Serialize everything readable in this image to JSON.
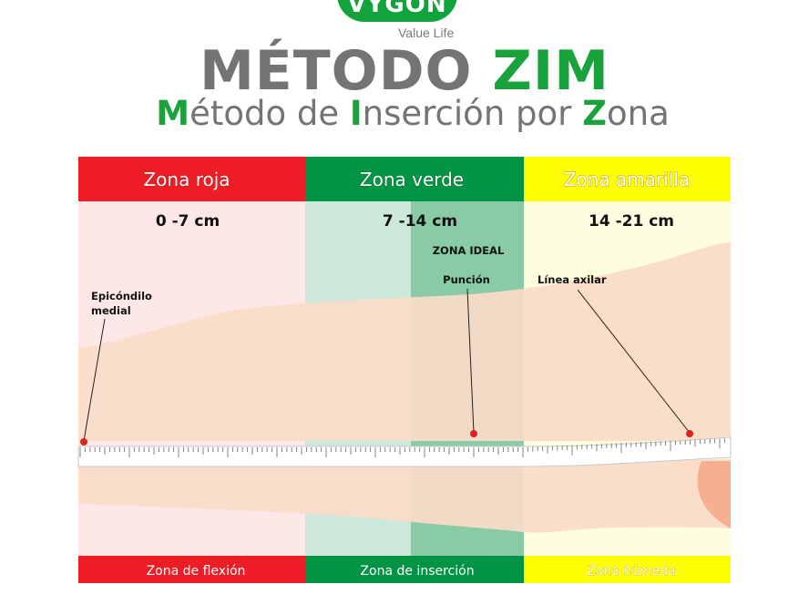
{
  "brand": {
    "logo": "VYGON",
    "tagline": "Value Life"
  },
  "title": {
    "part1": "MÉTODO",
    "part2": "ZIM"
  },
  "subtitle": {
    "m_cap": "M",
    "m_rest": "étodo de ",
    "i_cap": "I",
    "i_rest": "nserción por ",
    "z_cap": "Z",
    "z_rest": "ona"
  },
  "zones": [
    {
      "name": "Zona roja",
      "range": "0 -7 cm",
      "footer": "Zona de flexión",
      "header_color": "#ee1c25",
      "bg_color": "#fde7e7",
      "footer_color": "#ee1c25"
    },
    {
      "name": "Zona verde",
      "range": "7 -14 cm",
      "footer": "Zona de inserción",
      "header_color": "#009444",
      "bg_color": "#cde9dc",
      "footer_color": "#009444"
    },
    {
      "name": "Zona amarilla",
      "range": "14 -21 cm",
      "footer": "Zona húmeda",
      "header_color": "#ffff00",
      "bg_color": "#fffde0",
      "footer_color": "#ffff00"
    }
  ],
  "ideal_zone": {
    "label": "ZONA IDEAL",
    "color": "#88cba4"
  },
  "annotations": {
    "epicondyle_line1": "Epicóndilo",
    "epicondyle_line2": "medial",
    "puncture": "Punción",
    "axillary_line": "Línea axilar"
  },
  "colors": {
    "skin": "#fadcc8",
    "marker": "#e02020"
  }
}
